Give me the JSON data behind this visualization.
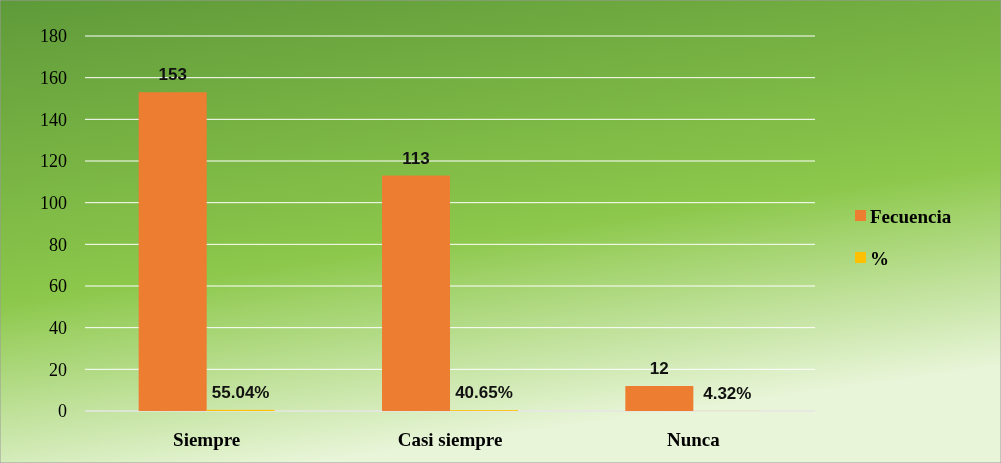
{
  "chart_data": {
    "type": "bar",
    "categories": [
      "Siempre",
      "Casi siempre",
      "Nunca"
    ],
    "series": [
      {
        "name": "Fecuencia",
        "color": "#ed7d31",
        "values": [
          153,
          113,
          12
        ],
        "value_labels": [
          "153",
          "113",
          "12"
        ]
      },
      {
        "name": "%",
        "color": "#ffc000",
        "values": [
          0.5504,
          0.4065,
          0.0432
        ],
        "value_labels": [
          "55.04%",
          "40.65%",
          "4.32%"
        ]
      }
    ],
    "ylim": [
      0,
      180
    ],
    "yticks": [
      0,
      20,
      40,
      60,
      80,
      100,
      120,
      140,
      160,
      180
    ],
    "grid": "y",
    "legend": "right"
  }
}
